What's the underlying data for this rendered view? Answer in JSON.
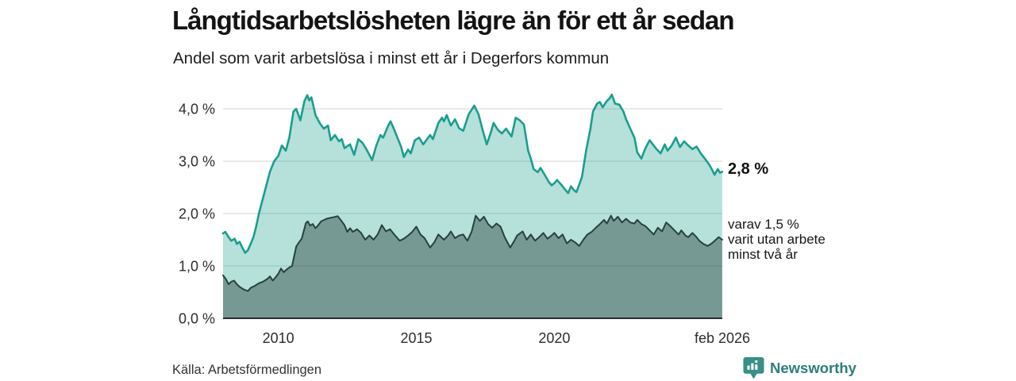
{
  "header": {
    "title": "Långtidsarbetslösheten lägre än för ett år sedan",
    "subtitle": "Andel som varit arbetslösa i minst ett år i Degerfors kommun"
  },
  "annotations": {
    "latest_total": "2,8 %",
    "secondary": "varav 1,5 %\nvarit utan arbete\nminst två år"
  },
  "footer": {
    "source": "Källa: Arbetsförmedlingen",
    "brand": "Newsworthy"
  },
  "colors": {
    "line_1yr": "#1a9e8e",
    "fill_1yr": "rgba(27,158,140,0.32)",
    "line_2yr": "#27423d",
    "fill_2yr": "rgba(39,66,61,0.45)",
    "gridline": "#dcdcdc",
    "axis": "#2d2d2d",
    "brand_teal": "#3a8f86"
  },
  "chart_data": {
    "type": "area",
    "title": "Långtidsarbetslösheten lägre än för ett år sedan",
    "subtitle": "Andel som varit arbetslösa i minst ett år i Degerfors kommun",
    "unit": "%",
    "x_range": [
      2008.0,
      2026.083
    ],
    "ylim": [
      0,
      4.38
    ],
    "grid": "horizontal",
    "legend": "inline-right-annotations",
    "y_ticks": [
      [
        0,
        "0,0 %"
      ],
      [
        1,
        "1,0 %"
      ],
      [
        2,
        "2,0 %"
      ],
      [
        3,
        "3,0 %"
      ],
      [
        4,
        "4,0 %"
      ]
    ],
    "x_ticks": [
      [
        2010,
        "2010"
      ],
      [
        2015,
        "2015"
      ],
      [
        2020,
        "2020"
      ],
      [
        2026.083,
        "feb 2026"
      ]
    ],
    "series": [
      {
        "name": "Arbetslösa minst ett år",
        "latest_value": 2.8,
        "latest_label": "2,8 %",
        "points": [
          [
            2008.0,
            1.62
          ],
          [
            2008.08,
            1.65
          ],
          [
            2008.2,
            1.55
          ],
          [
            2008.3,
            1.48
          ],
          [
            2008.42,
            1.52
          ],
          [
            2008.5,
            1.42
          ],
          [
            2008.6,
            1.46
          ],
          [
            2008.7,
            1.35
          ],
          [
            2008.8,
            1.25
          ],
          [
            2008.9,
            1.3
          ],
          [
            2009.0,
            1.42
          ],
          [
            2009.1,
            1.55
          ],
          [
            2009.2,
            1.75
          ],
          [
            2009.3,
            2.0
          ],
          [
            2009.4,
            2.2
          ],
          [
            2009.55,
            2.5
          ],
          [
            2009.7,
            2.8
          ],
          [
            2009.85,
            3.0
          ],
          [
            2010.0,
            3.1
          ],
          [
            2010.13,
            3.3
          ],
          [
            2010.27,
            3.2
          ],
          [
            2010.4,
            3.45
          ],
          [
            2010.55,
            3.95
          ],
          [
            2010.65,
            4.0
          ],
          [
            2010.8,
            3.78
          ],
          [
            2010.95,
            4.15
          ],
          [
            2011.05,
            4.26
          ],
          [
            2011.12,
            4.16
          ],
          [
            2011.2,
            4.22
          ],
          [
            2011.35,
            3.88
          ],
          [
            2011.5,
            3.73
          ],
          [
            2011.65,
            3.62
          ],
          [
            2011.8,
            3.68
          ],
          [
            2011.9,
            3.4
          ],
          [
            2012.05,
            3.5
          ],
          [
            2012.2,
            3.38
          ],
          [
            2012.3,
            3.42
          ],
          [
            2012.4,
            3.25
          ],
          [
            2012.6,
            3.32
          ],
          [
            2012.75,
            3.12
          ],
          [
            2012.9,
            3.42
          ],
          [
            2013.05,
            3.35
          ],
          [
            2013.2,
            3.22
          ],
          [
            2013.4,
            3.02
          ],
          [
            2013.55,
            3.3
          ],
          [
            2013.7,
            3.5
          ],
          [
            2013.8,
            3.45
          ],
          [
            2014.0,
            3.7
          ],
          [
            2014.07,
            3.76
          ],
          [
            2014.2,
            3.6
          ],
          [
            2014.45,
            3.27
          ],
          [
            2014.55,
            3.08
          ],
          [
            2014.7,
            3.22
          ],
          [
            2014.8,
            3.15
          ],
          [
            2014.95,
            3.4
          ],
          [
            2015.1,
            3.45
          ],
          [
            2015.25,
            3.32
          ],
          [
            2015.5,
            3.5
          ],
          [
            2015.6,
            3.42
          ],
          [
            2015.8,
            3.73
          ],
          [
            2015.93,
            3.83
          ],
          [
            2016.0,
            3.76
          ],
          [
            2016.1,
            3.88
          ],
          [
            2016.25,
            3.68
          ],
          [
            2016.4,
            3.8
          ],
          [
            2016.55,
            3.63
          ],
          [
            2016.7,
            3.58
          ],
          [
            2016.9,
            3.9
          ],
          [
            2017.0,
            3.98
          ],
          [
            2017.1,
            4.06
          ],
          [
            2017.25,
            3.9
          ],
          [
            2017.4,
            3.6
          ],
          [
            2017.55,
            3.32
          ],
          [
            2017.7,
            3.55
          ],
          [
            2017.8,
            3.73
          ],
          [
            2017.95,
            3.6
          ],
          [
            2018.1,
            3.53
          ],
          [
            2018.25,
            3.62
          ],
          [
            2018.45,
            3.47
          ],
          [
            2018.6,
            3.83
          ],
          [
            2018.75,
            3.78
          ],
          [
            2018.9,
            3.7
          ],
          [
            2019.05,
            3.2
          ],
          [
            2019.15,
            3.05
          ],
          [
            2019.25,
            2.85
          ],
          [
            2019.4,
            2.79
          ],
          [
            2019.5,
            2.87
          ],
          [
            2019.65,
            2.74
          ],
          [
            2019.8,
            2.6
          ],
          [
            2019.9,
            2.54
          ],
          [
            2020.0,
            2.58
          ],
          [
            2020.1,
            2.64
          ],
          [
            2020.25,
            2.55
          ],
          [
            2020.4,
            2.45
          ],
          [
            2020.5,
            2.39
          ],
          [
            2020.6,
            2.52
          ],
          [
            2020.7,
            2.45
          ],
          [
            2020.8,
            2.41
          ],
          [
            2020.9,
            2.55
          ],
          [
            2021.0,
            2.7
          ],
          [
            2021.15,
            3.2
          ],
          [
            2021.3,
            3.6
          ],
          [
            2021.4,
            3.95
          ],
          [
            2021.55,
            4.1
          ],
          [
            2021.65,
            4.13
          ],
          [
            2021.75,
            4.03
          ],
          [
            2021.9,
            4.15
          ],
          [
            2022.0,
            4.2
          ],
          [
            2022.08,
            4.27
          ],
          [
            2022.2,
            4.1
          ],
          [
            2022.35,
            4.08
          ],
          [
            2022.5,
            3.95
          ],
          [
            2022.6,
            3.8
          ],
          [
            2022.75,
            3.62
          ],
          [
            2022.9,
            3.45
          ],
          [
            2023.0,
            3.17
          ],
          [
            2023.15,
            3.05
          ],
          [
            2023.3,
            3.25
          ],
          [
            2023.45,
            3.4
          ],
          [
            2023.6,
            3.3
          ],
          [
            2023.7,
            3.23
          ],
          [
            2023.85,
            3.15
          ],
          [
            2024.0,
            3.32
          ],
          [
            2024.1,
            3.2
          ],
          [
            2024.25,
            3.3
          ],
          [
            2024.4,
            3.45
          ],
          [
            2024.55,
            3.27
          ],
          [
            2024.7,
            3.38
          ],
          [
            2024.85,
            3.3
          ],
          [
            2025.0,
            3.23
          ],
          [
            2025.15,
            3.28
          ],
          [
            2025.3,
            3.15
          ],
          [
            2025.45,
            3.05
          ],
          [
            2025.6,
            2.94
          ],
          [
            2025.7,
            2.85
          ],
          [
            2025.8,
            2.74
          ],
          [
            2025.92,
            2.85
          ],
          [
            2026.0,
            2.78
          ],
          [
            2026.08,
            2.8
          ]
        ]
      },
      {
        "name": "varav utan arbete minst två år",
        "latest_value": 1.5,
        "latest_label": "1,5 %",
        "points": [
          [
            2008.0,
            0.82
          ],
          [
            2008.1,
            0.75
          ],
          [
            2008.2,
            0.65
          ],
          [
            2008.3,
            0.7
          ],
          [
            2008.4,
            0.72
          ],
          [
            2008.5,
            0.65
          ],
          [
            2008.6,
            0.6
          ],
          [
            2008.75,
            0.55
          ],
          [
            2008.9,
            0.52
          ],
          [
            2009.0,
            0.58
          ],
          [
            2009.15,
            0.62
          ],
          [
            2009.3,
            0.67
          ],
          [
            2009.45,
            0.7
          ],
          [
            2009.6,
            0.75
          ],
          [
            2009.7,
            0.8
          ],
          [
            2009.8,
            0.72
          ],
          [
            2009.9,
            0.78
          ],
          [
            2010.0,
            0.85
          ],
          [
            2010.1,
            0.95
          ],
          [
            2010.2,
            0.88
          ],
          [
            2010.3,
            0.93
          ],
          [
            2010.4,
            0.97
          ],
          [
            2010.5,
            1.0
          ],
          [
            2010.65,
            1.37
          ],
          [
            2010.75,
            1.45
          ],
          [
            2010.85,
            1.52
          ],
          [
            2011.0,
            1.82
          ],
          [
            2011.07,
            1.85
          ],
          [
            2011.15,
            1.77
          ],
          [
            2011.25,
            1.8
          ],
          [
            2011.35,
            1.72
          ],
          [
            2011.45,
            1.78
          ],
          [
            2011.55,
            1.85
          ],
          [
            2011.75,
            1.9
          ],
          [
            2011.9,
            1.92
          ],
          [
            2012.0,
            1.93
          ],
          [
            2012.15,
            1.95
          ],
          [
            2012.3,
            1.85
          ],
          [
            2012.4,
            1.78
          ],
          [
            2012.5,
            1.65
          ],
          [
            2012.6,
            1.72
          ],
          [
            2012.7,
            1.65
          ],
          [
            2012.85,
            1.7
          ],
          [
            2013.0,
            1.63
          ],
          [
            2013.15,
            1.5
          ],
          [
            2013.3,
            1.58
          ],
          [
            2013.45,
            1.5
          ],
          [
            2013.6,
            1.6
          ],
          [
            2013.75,
            1.78
          ],
          [
            2013.9,
            1.66
          ],
          [
            2014.05,
            1.7
          ],
          [
            2014.2,
            1.6
          ],
          [
            2014.4,
            1.48
          ],
          [
            2014.55,
            1.52
          ],
          [
            2014.7,
            1.58
          ],
          [
            2014.85,
            1.65
          ],
          [
            2015.0,
            1.75
          ],
          [
            2015.15,
            1.6
          ],
          [
            2015.3,
            1.53
          ],
          [
            2015.5,
            1.35
          ],
          [
            2015.65,
            1.45
          ],
          [
            2015.8,
            1.6
          ],
          [
            2016.0,
            1.5
          ],
          [
            2016.15,
            1.58
          ],
          [
            2016.25,
            1.66
          ],
          [
            2016.4,
            1.53
          ],
          [
            2016.55,
            1.58
          ],
          [
            2016.7,
            1.6
          ],
          [
            2016.85,
            1.48
          ],
          [
            2017.0,
            1.65
          ],
          [
            2017.15,
            1.96
          ],
          [
            2017.3,
            1.86
          ],
          [
            2017.45,
            1.94
          ],
          [
            2017.6,
            1.8
          ],
          [
            2017.75,
            1.73
          ],
          [
            2017.9,
            1.81
          ],
          [
            2018.05,
            1.75
          ],
          [
            2018.2,
            1.55
          ],
          [
            2018.4,
            1.35
          ],
          [
            2018.55,
            1.48
          ],
          [
            2018.65,
            1.58
          ],
          [
            2018.85,
            1.66
          ],
          [
            2019.0,
            1.5
          ],
          [
            2019.15,
            1.6
          ],
          [
            2019.3,
            1.48
          ],
          [
            2019.45,
            1.55
          ],
          [
            2019.6,
            1.63
          ],
          [
            2019.75,
            1.52
          ],
          [
            2019.9,
            1.58
          ],
          [
            2020.0,
            1.63
          ],
          [
            2020.15,
            1.53
          ],
          [
            2020.3,
            1.6
          ],
          [
            2020.45,
            1.43
          ],
          [
            2020.6,
            1.5
          ],
          [
            2020.75,
            1.45
          ],
          [
            2020.9,
            1.38
          ],
          [
            2021.05,
            1.5
          ],
          [
            2021.2,
            1.6
          ],
          [
            2021.35,
            1.65
          ],
          [
            2021.5,
            1.73
          ],
          [
            2021.65,
            1.8
          ],
          [
            2021.8,
            1.88
          ],
          [
            2021.9,
            1.81
          ],
          [
            2022.05,
            1.96
          ],
          [
            2022.15,
            1.86
          ],
          [
            2022.3,
            1.94
          ],
          [
            2022.45,
            1.83
          ],
          [
            2022.6,
            1.9
          ],
          [
            2022.75,
            1.83
          ],
          [
            2022.9,
            1.81
          ],
          [
            2023.0,
            1.88
          ],
          [
            2023.15,
            1.8
          ],
          [
            2023.3,
            1.76
          ],
          [
            2023.45,
            1.68
          ],
          [
            2023.6,
            1.6
          ],
          [
            2023.75,
            1.73
          ],
          [
            2023.9,
            1.66
          ],
          [
            2024.05,
            1.83
          ],
          [
            2024.2,
            1.76
          ],
          [
            2024.35,
            1.68
          ],
          [
            2024.5,
            1.6
          ],
          [
            2024.6,
            1.68
          ],
          [
            2024.75,
            1.58
          ],
          [
            2024.85,
            1.55
          ],
          [
            2025.0,
            1.63
          ],
          [
            2025.15,
            1.55
          ],
          [
            2025.25,
            1.48
          ],
          [
            2025.4,
            1.42
          ],
          [
            2025.55,
            1.38
          ],
          [
            2025.7,
            1.43
          ],
          [
            2025.85,
            1.5
          ],
          [
            2025.95,
            1.55
          ],
          [
            2026.08,
            1.5
          ]
        ]
      }
    ]
  }
}
